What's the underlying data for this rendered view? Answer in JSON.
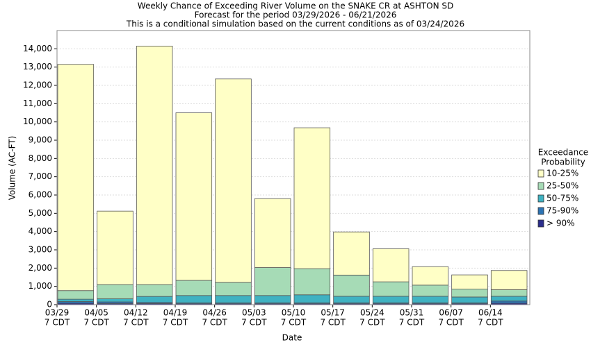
{
  "chart_data": {
    "type": "stacked_bar",
    "title": "Weekly Chance of Exceeding River Volume on the SNAKE CR at ASHTON SD",
    "subtitle": "Forecast for the period 03/29/2026 - 06/21/2026",
    "note": "This is a conditional simulation based on the current conditions as of 03/24/2026",
    "x_label": "Date",
    "y_label": "Volume (AC-FT)",
    "categories": [
      "03/29",
      "04/05",
      "04/12",
      "04/19",
      "04/26",
      "05/03",
      "05/10",
      "05/17",
      "05/24",
      "05/31",
      "06/07",
      "06/14"
    ],
    "category_suffix": "7 CDT",
    "legend_title": [
      "Exceedance",
      "Probability"
    ],
    "series": [
      {
        "name": "> 90%",
        "color": "#2b2e8c",
        "values": [
          80,
          60,
          60,
          50,
          50,
          50,
          50,
          50,
          50,
          50,
          50,
          80
        ]
      },
      {
        "name": "75-90%",
        "color": "#2c73b3",
        "values": [
          90,
          90,
          60,
          50,
          50,
          50,
          50,
          50,
          50,
          50,
          50,
          120
        ]
      },
      {
        "name": "50-75%",
        "color": "#3fb2c2",
        "values": [
          130,
          170,
          330,
          400,
          400,
          400,
          440,
          360,
          360,
          360,
          320,
          260
        ]
      },
      {
        "name": "25-50%",
        "color": "#a6dbb6",
        "values": [
          470,
          780,
          650,
          830,
          720,
          1530,
          1430,
          1160,
          790,
          610,
          430,
          360
        ]
      },
      {
        "name": "10-25%",
        "color": "#ffffc6",
        "values": [
          12380,
          4020,
          13050,
          9170,
          11130,
          3770,
          7710,
          2360,
          1810,
          1010,
          780,
          1050
        ]
      }
    ],
    "ylim": [
      0,
      15000
    ],
    "yticks": [
      0,
      {
        "value": 1000,
        "label": "1,000"
      },
      {
        "value": 2000,
        "label": "2,000"
      },
      {
        "value": 3000,
        "label": "3,000"
      },
      {
        "value": 4000,
        "label": "4,000"
      },
      {
        "value": 5000,
        "label": "5,000"
      },
      {
        "value": 6000,
        "label": "6,000"
      },
      {
        "value": 7000,
        "label": "7,000"
      },
      {
        "value": 8000,
        "label": "8,000"
      },
      {
        "value": 9000,
        "label": "9,000"
      },
      {
        "value": 10000,
        "label": "10,000"
      },
      {
        "value": 11000,
        "label": "11,000"
      },
      {
        "value": 12000,
        "label": "12,000"
      },
      {
        "value": 13000,
        "label": "13,000"
      },
      {
        "value": 14000,
        "label": "14,000"
      }
    ],
    "grid": true
  }
}
